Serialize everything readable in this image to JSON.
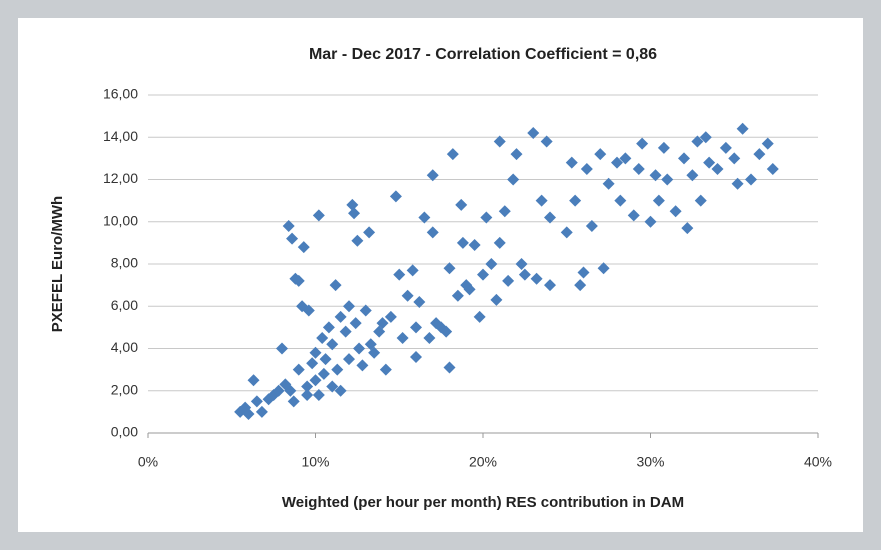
{
  "chart_data": {
    "type": "scatter",
    "title": "Mar - Dec 2017 - Correlation Coefficient = 0,86",
    "x_label": "Weighted (per hour per month) RES contribution in DAM",
    "y_label": "PXEFEL Euro/MWh",
    "color": "#4a7ebb",
    "grid": true,
    "xlim": [
      0,
      40
    ],
    "xticks": [
      {
        "value": 0,
        "label": "0%"
      },
      {
        "value": 10,
        "label": "10%"
      },
      {
        "value": 20,
        "label": "20%"
      },
      {
        "value": 30,
        "label": "30%"
      },
      {
        "value": 40,
        "label": "40%"
      }
    ],
    "ylim": [
      0,
      16
    ],
    "yticks": [
      {
        "value": 0,
        "label": "0,00"
      },
      {
        "value": 2,
        "label": "2,00"
      },
      {
        "value": 4,
        "label": "4,00"
      },
      {
        "value": 6,
        "label": "6,00"
      },
      {
        "value": 8,
        "label": "8,00"
      },
      {
        "value": 10,
        "label": "10,00"
      },
      {
        "value": 12,
        "label": "12,00"
      },
      {
        "value": 14,
        "label": "14,00"
      },
      {
        "value": 16,
        "label": "16,00"
      }
    ],
    "x": [
      5.5,
      5.8,
      6.0,
      6.3,
      6.5,
      6.8,
      7.2,
      7.5,
      7.8,
      8.0,
      8.2,
      8.4,
      8.5,
      8.6,
      8.7,
      8.8,
      9.0,
      9.0,
      9.2,
      9.3,
      9.5,
      9.5,
      9.6,
      9.8,
      10.0,
      10.0,
      10.2,
      10.2,
      10.4,
      10.5,
      10.6,
      10.8,
      11.0,
      11.0,
      11.2,
      11.3,
      11.5,
      11.5,
      11.8,
      12.0,
      12.0,
      12.2,
      12.3,
      12.4,
      12.5,
      12.6,
      12.8,
      13.0,
      13.2,
      13.3,
      13.5,
      13.8,
      14.0,
      14.2,
      14.5,
      14.8,
      15.0,
      15.2,
      15.5,
      15.8,
      16.0,
      16.0,
      16.2,
      16.5,
      16.8,
      17.0,
      17.0,
      17.2,
      17.5,
      17.8,
      18.0,
      18.0,
      18.2,
      18.5,
      18.7,
      18.8,
      19.0,
      19.2,
      19.5,
      19.8,
      20.0,
      20.2,
      20.5,
      20.8,
      21.0,
      21.0,
      21.3,
      21.5,
      21.8,
      22.0,
      22.3,
      22.5,
      23.0,
      23.2,
      23.5,
      23.8,
      24.0,
      24.0,
      25.0,
      25.3,
      25.5,
      25.8,
      26.0,
      26.2,
      26.5,
      27.0,
      27.2,
      27.5,
      28.0,
      28.2,
      28.5,
      29.0,
      29.3,
      29.5,
      30.0,
      30.3,
      30.5,
      30.8,
      31.0,
      31.5,
      32.0,
      32.2,
      32.5,
      32.8,
      33.0,
      33.3,
      33.5,
      34.0,
      34.5,
      35.0,
      35.2,
      35.5,
      36.0,
      36.5,
      37.0,
      37.3
    ],
    "values": [
      1.0,
      1.2,
      0.9,
      2.5,
      1.5,
      1.0,
      1.6,
      1.8,
      2.0,
      4.0,
      2.3,
      9.8,
      2.0,
      9.2,
      1.5,
      7.3,
      7.2,
      3.0,
      6.0,
      8.8,
      2.2,
      1.8,
      5.8,
      3.3,
      2.5,
      3.8,
      1.8,
      10.3,
      4.5,
      2.8,
      3.5,
      5.0,
      2.2,
      4.2,
      7.0,
      3.0,
      5.5,
      2.0,
      4.8,
      6.0,
      3.5,
      10.8,
      10.4,
      5.2,
      9.1,
      4.0,
      3.2,
      5.8,
      9.5,
      4.2,
      3.8,
      4.8,
      5.2,
      3.0,
      5.5,
      11.2,
      7.5,
      4.5,
      6.5,
      7.7,
      5.0,
      3.6,
      6.2,
      10.2,
      4.5,
      12.2,
      9.5,
      5.2,
      5.0,
      4.8,
      3.1,
      7.8,
      13.2,
      6.5,
      10.8,
      9.0,
      7.0,
      6.8,
      8.9,
      5.5,
      7.5,
      10.2,
      8.0,
      6.3,
      13.8,
      9.0,
      10.5,
      7.2,
      12.0,
      13.2,
      8.0,
      7.5,
      14.2,
      7.3,
      11.0,
      13.8,
      10.2,
      7.0,
      9.5,
      12.8,
      11.0,
      7.0,
      7.6,
      12.5,
      9.8,
      13.2,
      7.8,
      11.8,
      12.8,
      11.0,
      13.0,
      10.3,
      12.5,
      13.7,
      10.0,
      12.2,
      11.0,
      13.5,
      12.0,
      10.5,
      13.0,
      9.7,
      12.2,
      13.8,
      11.0,
      14.0,
      12.8,
      12.5,
      13.5,
      13.0,
      11.8,
      14.4,
      12.0,
      13.2,
      13.7,
      12.5
    ]
  }
}
